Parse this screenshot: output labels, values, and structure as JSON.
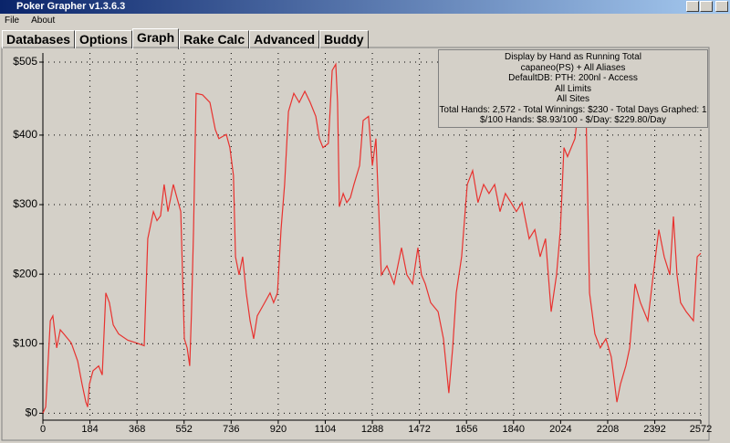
{
  "window": {
    "title": "Poker Grapher v1.3.6.3"
  },
  "menu": [
    "File",
    "About"
  ],
  "tabs": [
    "Databases",
    "Options",
    "Graph",
    "Rake Calc",
    "Advanced",
    "Buddy"
  ],
  "info": [
    "Display by Hand as Running Total",
    "capaneo(PS) + All Aliases",
    "DefaultDB: PTH: 200nl  - Access",
    "All Limits",
    "All Sites",
    "Total Hands: 2,572 - Total Winnings: $230 - Total Days Graphed: 1",
    "$/100 Hands: $8.93/100 - $/Day: $229.80/Day"
  ],
  "chart_data": {
    "type": "line",
    "x": [
      0,
      11,
      29,
      39,
      54,
      68,
      82,
      111,
      136,
      153,
      168,
      175,
      182,
      196,
      218,
      232,
      246,
      260,
      275,
      296,
      332,
      367,
      396,
      410,
      432,
      446,
      460,
      474,
      489,
      510,
      524,
      539,
      553,
      564,
      574,
      581,
      589,
      599,
      624,
      653,
      674,
      688,
      717,
      731,
      745,
      753,
      767,
      781,
      795,
      810,
      824,
      838,
      867,
      888,
      902,
      917,
      931,
      945,
      960,
      981,
      1002,
      1024,
      1045,
      1067,
      1081,
      1095,
      1116,
      1131,
      1145,
      1152,
      1159,
      1174,
      1188,
      1202,
      1216,
      1238,
      1252,
      1273,
      1288,
      1302,
      1323,
      1345,
      1373,
      1402,
      1423,
      1445,
      1466,
      1480,
      1495,
      1516,
      1545,
      1566,
      1587,
      1602,
      1616,
      1637,
      1659,
      1680,
      1701,
      1723,
      1744,
      1766,
      1787,
      1808,
      1830,
      1851,
      1873,
      1887,
      1901,
      1923,
      1944,
      1965,
      1987,
      2008,
      2023,
      2037,
      2051,
      2080,
      2101,
      2115,
      2122,
      2137,
      2158,
      2179,
      2201,
      2222,
      2244,
      2258,
      2279,
      2294,
      2315,
      2336,
      2365,
      2386,
      2408,
      2429,
      2451,
      2465,
      2479,
      2493,
      2515,
      2543,
      2558,
      2572
    ],
    "series": [
      {
        "color": "#e8322f",
        "values": [
          0,
          9,
          133,
          140,
          94,
          120,
          114,
          101,
          75,
          42,
          16,
          9,
          42,
          61,
          68,
          55,
          173,
          159,
          127,
          114,
          105,
          101,
          97,
          251,
          290,
          277,
          284,
          329,
          290,
          329,
          310,
          290,
          107,
          94,
          68,
          146,
          264,
          460,
          458,
          447,
          408,
          395,
          401,
          382,
          342,
          225,
          199,
          225,
          173,
          133,
          107,
          140,
          159,
          173,
          159,
          173,
          264,
          329,
          434,
          460,
          447,
          463,
          447,
          427,
          395,
          382,
          388,
          493,
          502,
          447,
          297,
          316,
          303,
          310,
          329,
          356,
          421,
          427,
          356,
          395,
          199,
          212,
          186,
          238,
          199,
          186,
          238,
          199,
          186,
          159,
          146,
          107,
          29,
          94,
          173,
          225,
          329,
          349,
          303,
          329,
          316,
          329,
          290,
          316,
          303,
          290,
          303,
          277,
          251,
          264,
          225,
          251,
          146,
          199,
          264,
          382,
          369,
          395,
          460,
          499,
          460,
          173,
          114,
          94,
          107,
          81,
          16,
          42,
          68,
          94,
          186,
          159,
          133,
          199,
          264,
          225,
          199,
          283,
          199,
          159,
          146,
          133,
          225,
          230
        ]
      }
    ],
    "xlim": [
      0,
      2572
    ],
    "ylim": [
      -10,
      505
    ],
    "xticks": [
      0,
      184,
      368,
      552,
      736,
      920,
      1104,
      1288,
      1472,
      1656,
      1840,
      2024,
      2208,
      2392,
      2572
    ],
    "yticks": [
      {
        "value": 0,
        "label": "$0"
      },
      {
        "value": 100,
        "label": "$100"
      },
      {
        "value": 200,
        "label": "$200"
      },
      {
        "value": 300,
        "label": "$300"
      },
      {
        "value": 400,
        "label": "$400"
      },
      {
        "value": 505,
        "label": "$505"
      }
    ],
    "grid": true
  }
}
